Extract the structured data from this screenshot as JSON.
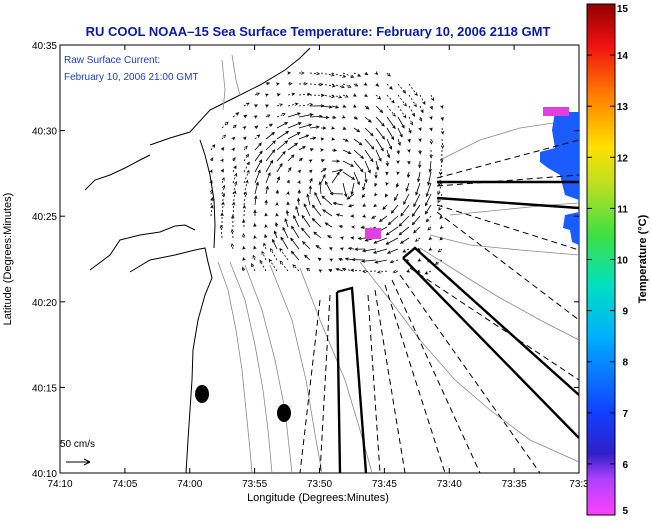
{
  "header": {
    "title": "RU COOL  NOAA–15  Sea Surface Temperature:  February 10, 2006 2118 GMT"
  },
  "overlay": {
    "line1": "Raw Surface Current:",
    "line2": "February 10, 2006 21:00 GMT"
  },
  "scale": {
    "label": "50 cm/s"
  },
  "axes": {
    "xlabel": "Longitude (Degrees:Minutes)",
    "ylabel": "Latitude (Degrees:Minutes)",
    "xticks": [
      "74:10",
      "74:05",
      "74:00",
      "73:55",
      "73:50",
      "73:45",
      "73:40",
      "73:35",
      "73:3"
    ],
    "yticks": [
      "40:35",
      "40:30",
      "40:25",
      "40:20",
      "40:15",
      "40:10"
    ]
  },
  "colorbar": {
    "label": "Temperature (°C)",
    "ticks": [
      "15",
      "14",
      "13",
      "12",
      "11",
      "10",
      "9",
      "8",
      "7",
      "6",
      "5"
    ],
    "range": [
      5,
      15
    ]
  },
  "colors": {
    "title": "#0a1aa8",
    "overlay_text": "#1e3cc8",
    "sst_patch_blue": "#1a5cff",
    "sst_patch_magenta": "#e040e0"
  }
}
